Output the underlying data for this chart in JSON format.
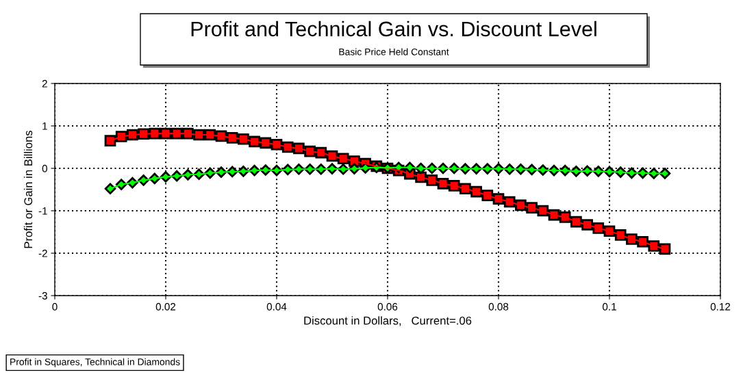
{
  "chart_data": {
    "type": "line",
    "title": "Profit and Technical Gain vs. Discount Level",
    "subtitle": "Basic Price Held Constant",
    "xlabel": "Discount in Dollars,   Current=.06",
    "ylabel": "Profit or Gain in Billions",
    "annotations": [
      "Profit in Squares, Technical in Diamonds"
    ],
    "x": [
      0.01,
      0.012,
      0.014,
      0.016,
      0.018,
      0.02,
      0.022,
      0.024,
      0.026,
      0.028,
      0.03,
      0.032,
      0.034,
      0.036,
      0.038,
      0.04,
      0.042,
      0.044,
      0.046,
      0.048,
      0.05,
      0.052,
      0.054,
      0.056,
      0.058,
      0.06,
      0.062,
      0.064,
      0.066,
      0.068,
      0.07,
      0.072,
      0.074,
      0.076,
      0.078,
      0.08,
      0.082,
      0.084,
      0.086,
      0.088,
      0.09,
      0.092,
      0.094,
      0.096,
      0.098,
      0.1,
      0.102,
      0.104,
      0.106,
      0.108,
      0.11
    ],
    "series": [
      {
        "color": "#ff0000",
        "marker": "square",
        "values": [
          0.65,
          0.75,
          0.79,
          0.81,
          0.82,
          0.82,
          0.82,
          0.82,
          0.79,
          0.79,
          0.76,
          0.72,
          0.69,
          0.63,
          0.6,
          0.56,
          0.5,
          0.47,
          0.4,
          0.37,
          0.29,
          0.23,
          0.17,
          0.11,
          0.05,
          0.0,
          -0.05,
          -0.13,
          -0.21,
          -0.28,
          -0.36,
          -0.41,
          -0.48,
          -0.55,
          -0.64,
          -0.72,
          -0.79,
          -0.87,
          -0.93,
          -1.0,
          -1.1,
          -1.15,
          -1.26,
          -1.33,
          -1.41,
          -1.48,
          -1.57,
          -1.67,
          -1.73,
          -1.83,
          -1.9
        ]
      },
      {
        "color": "#00ff00",
        "marker": "diamond",
        "values": [
          -0.48,
          -0.38,
          -0.34,
          -0.28,
          -0.24,
          -0.2,
          -0.18,
          -0.15,
          -0.14,
          -0.11,
          -0.09,
          -0.08,
          -0.07,
          -0.05,
          -0.04,
          -0.05,
          -0.03,
          -0.02,
          -0.02,
          -0.02,
          -0.01,
          -0.02,
          -0.01,
          0.01,
          0.02,
          0.01,
          0.02,
          0.02,
          0.0,
          0.0,
          0.0,
          0.0,
          -0.01,
          -0.01,
          -0.01,
          -0.01,
          -0.02,
          -0.02,
          -0.03,
          -0.04,
          -0.05,
          -0.05,
          -0.07,
          -0.06,
          -0.07,
          -0.08,
          -0.09,
          -0.11,
          -0.11,
          -0.12,
          -0.12
        ]
      }
    ],
    "xlim": [
      0,
      0.12
    ],
    "xticks": [
      0,
      0.02,
      0.04,
      0.06,
      0.08,
      0.1,
      0.12
    ],
    "ylim": [
      -3,
      2
    ],
    "yticks": [
      -3,
      -2,
      -1,
      0,
      1,
      2
    ],
    "grid": true,
    "legend": false
  }
}
